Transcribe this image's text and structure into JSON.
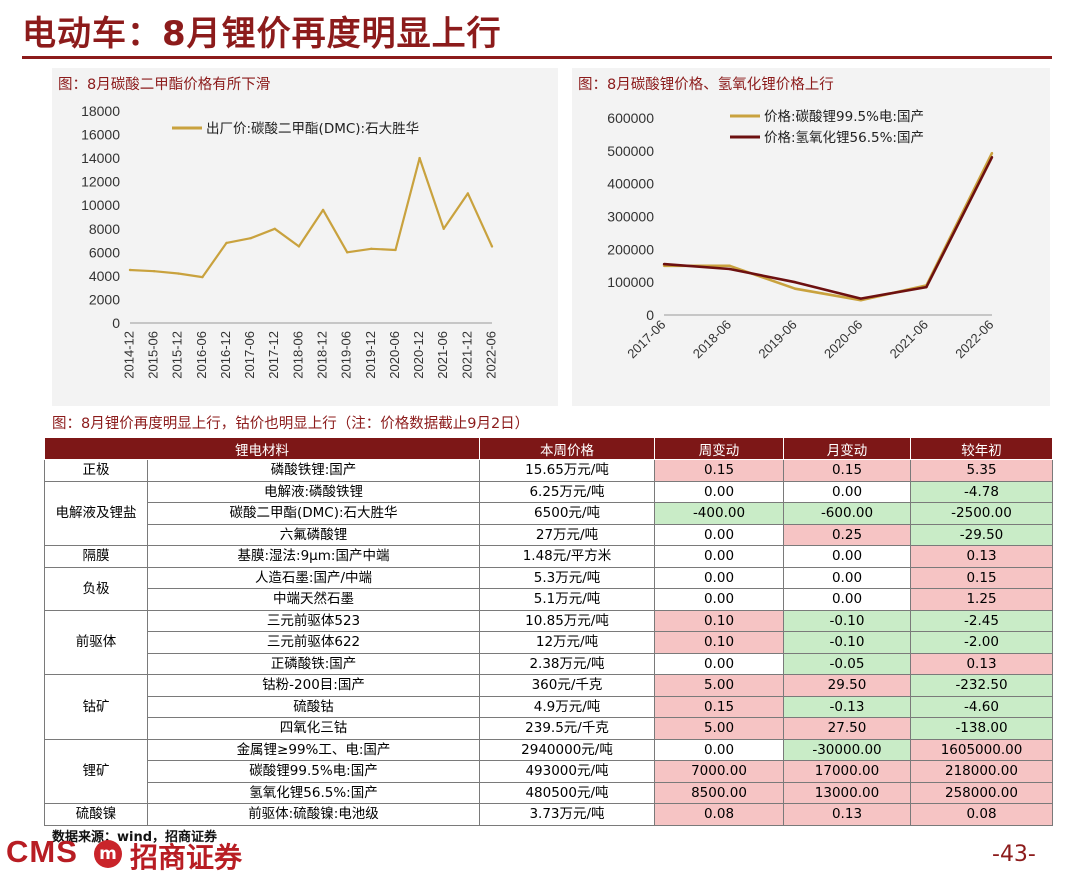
{
  "header": {
    "title": "电动车：8月锂价再度明显上行"
  },
  "colors": {
    "accent": "#8c1b1b",
    "dmc_line": "#c9a23e",
    "li2co3_line": "#c9a23e",
    "lioh_line": "#6d1010",
    "pos": "#f6c4c4",
    "neg": "#c9ecc7"
  },
  "chart_data": [
    {
      "type": "line",
      "title": "图：8月碳酸二甲酯价格有所下滑",
      "x": [
        "2014-12",
        "2015-06",
        "2015-12",
        "2016-06",
        "2016-12",
        "2017-06",
        "2017-12",
        "2018-06",
        "2018-12",
        "2019-06",
        "2019-12",
        "2020-06",
        "2020-12",
        "2021-06",
        "2021-12",
        "2022-06"
      ],
      "series": [
        {
          "name": "出厂价:碳酸二甲酯(DMC):石大胜华",
          "values": [
            4500,
            4400,
            4200,
            3900,
            6800,
            7200,
            8000,
            6500,
            9600,
            6000,
            6300,
            6200,
            14000,
            8000,
            11000,
            6500
          ]
        }
      ],
      "ylim": [
        0,
        18000
      ],
      "yticks": [
        "0",
        "2000",
        "4000",
        "6000",
        "8000",
        "10000",
        "12000",
        "14000",
        "16000",
        "18000"
      ]
    },
    {
      "type": "line",
      "title": "图：8月碳酸锂价格、氢氧化锂价格上行",
      "x": [
        "2017-06",
        "2018-06",
        "2019-06",
        "2020-06",
        "2021-06",
        "2022-06"
      ],
      "series": [
        {
          "name": "价格:碳酸锂99.5%电:国产",
          "values": [
            150000,
            150000,
            80000,
            45000,
            90000,
            493000
          ]
        },
        {
          "name": "价格:氢氧化锂56.5%:国产",
          "values": [
            155000,
            140000,
            100000,
            50000,
            85000,
            480500
          ]
        }
      ],
      "ylim": [
        0,
        600000
      ],
      "yticks": [
        "0",
        "100000",
        "200000",
        "300000",
        "400000",
        "500000",
        "600000"
      ]
    }
  ],
  "table": {
    "title": "图：8月锂价再度明显上行，钴价也明显上行（注：价格数据截止9月2日）",
    "headers": [
      "锂电材料",
      "本周价格",
      "周变动",
      "月变动",
      "较年初"
    ],
    "groups": [
      {
        "category": "正极",
        "rows": [
          {
            "material": "磷酸铁锂:国产",
            "price": "15.65万元/吨",
            "week": "0.15",
            "month": "0.15",
            "ytd": "5.35"
          }
        ]
      },
      {
        "category": "电解液及锂盐",
        "rows": [
          {
            "material": "电解液:磷酸铁锂",
            "price": "6.25万元/吨",
            "week": "0.00",
            "month": "0.00",
            "ytd": "-4.78"
          },
          {
            "material": "碳酸二甲酯(DMC):石大胜华",
            "price": "6500元/吨",
            "week": "-400.00",
            "month": "-600.00",
            "ytd": "-2500.00"
          },
          {
            "material": "六氟磷酸锂",
            "price": "27万元/吨",
            "week": "0.00",
            "month": "0.25",
            "ytd": "-29.50"
          }
        ]
      },
      {
        "category": "隔膜",
        "rows": [
          {
            "material": "基膜:湿法:9μm:国产中端",
            "price": "1.48元/平方米",
            "week": "0.00",
            "month": "0.00",
            "ytd": "0.13"
          }
        ]
      },
      {
        "category": "负极",
        "rows": [
          {
            "material": "人造石墨:国产/中端",
            "price": "5.3万元/吨",
            "week": "0.00",
            "month": "0.00",
            "ytd": "0.15"
          },
          {
            "material": "中端天然石墨",
            "price": "5.1万元/吨",
            "week": "0.00",
            "month": "0.00",
            "ytd": "1.25"
          }
        ]
      },
      {
        "category": "前驱体",
        "rows": [
          {
            "material": "三元前驱体523",
            "price": "10.85万元/吨",
            "week": "0.10",
            "month": "-0.10",
            "ytd": "-2.45"
          },
          {
            "material": "三元前驱体622",
            "price": "12万元/吨",
            "week": "0.10",
            "month": "-0.10",
            "ytd": "-2.00"
          },
          {
            "material": "正磷酸铁:国产",
            "price": "2.38万元/吨",
            "week": "0.00",
            "month": "-0.05",
            "ytd": "0.13"
          }
        ]
      },
      {
        "category": "钴矿",
        "rows": [
          {
            "material": "钴粉-200目:国产",
            "price": "360元/千克",
            "week": "5.00",
            "month": "29.50",
            "ytd": "-232.50"
          },
          {
            "material": "硫酸钴",
            "price": "4.9万元/吨",
            "week": "0.15",
            "month": "-0.13",
            "ytd": "-4.60"
          },
          {
            "material": "四氧化三钴",
            "price": "239.5元/千克",
            "week": "5.00",
            "month": "27.50",
            "ytd": "-138.00"
          }
        ]
      },
      {
        "category": "锂矿",
        "rows": [
          {
            "material": "金属锂≥99%工、电:国产",
            "price": "2940000元/吨",
            "week": "0.00",
            "month": "-30000.00",
            "ytd": "1605000.00"
          },
          {
            "material": "碳酸锂99.5%电:国产",
            "price": "493000元/吨",
            "week": "7000.00",
            "month": "17000.00",
            "ytd": "218000.00"
          },
          {
            "material": "氢氧化锂56.5%:国产",
            "price": "480500元/吨",
            "week": "8500.00",
            "month": "13000.00",
            "ytd": "258000.00"
          }
        ]
      },
      {
        "category": "硫酸镍",
        "rows": [
          {
            "material": "前驱体:硫酸镍:电池级",
            "price": "3.73万元/吨",
            "week": "0.08",
            "month": "0.13",
            "ytd": "0.08"
          }
        ]
      }
    ]
  },
  "footer": {
    "source": "数据来源：wind，招商证券",
    "logo_cms": "CMS",
    "logo_mark": "m",
    "logo_name": "招商证券",
    "page_number": "-43-"
  }
}
